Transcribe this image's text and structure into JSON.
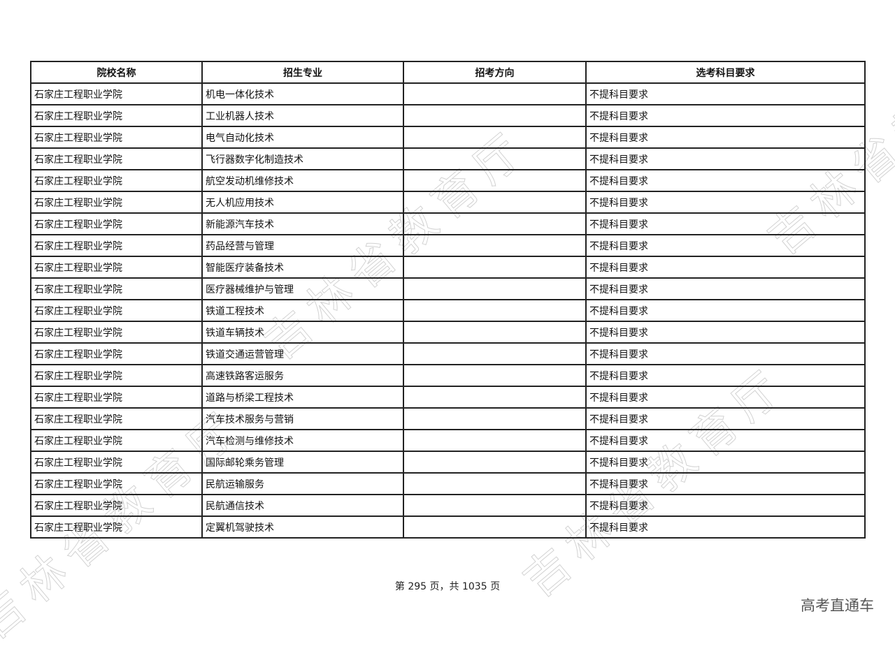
{
  "watermark": "吉林省教育厅",
  "table": {
    "headers": [
      "院校名称",
      "招生专业",
      "招考方向",
      "选考科目要求"
    ],
    "rows": [
      [
        "石家庄工程职业学院",
        "机电一体化技术",
        "",
        "不提科目要求"
      ],
      [
        "石家庄工程职业学院",
        "工业机器人技术",
        "",
        "不提科目要求"
      ],
      [
        "石家庄工程职业学院",
        "电气自动化技术",
        "",
        "不提科目要求"
      ],
      [
        "石家庄工程职业学院",
        "飞行器数字化制造技术",
        "",
        "不提科目要求"
      ],
      [
        "石家庄工程职业学院",
        "航空发动机维修技术",
        "",
        "不提科目要求"
      ],
      [
        "石家庄工程职业学院",
        "无人机应用技术",
        "",
        "不提科目要求"
      ],
      [
        "石家庄工程职业学院",
        "新能源汽车技术",
        "",
        "不提科目要求"
      ],
      [
        "石家庄工程职业学院",
        "药品经营与管理",
        "",
        "不提科目要求"
      ],
      [
        "石家庄工程职业学院",
        "智能医疗装备技术",
        "",
        "不提科目要求"
      ],
      [
        "石家庄工程职业学院",
        "医疗器械维护与管理",
        "",
        "不提科目要求"
      ],
      [
        "石家庄工程职业学院",
        "铁道工程技术",
        "",
        "不提科目要求"
      ],
      [
        "石家庄工程职业学院",
        "铁道车辆技术",
        "",
        "不提科目要求"
      ],
      [
        "石家庄工程职业学院",
        "铁道交通运营管理",
        "",
        "不提科目要求"
      ],
      [
        "石家庄工程职业学院",
        "高速铁路客运服务",
        "",
        "不提科目要求"
      ],
      [
        "石家庄工程职业学院",
        "道路与桥梁工程技术",
        "",
        "不提科目要求"
      ],
      [
        "石家庄工程职业学院",
        "汽车技术服务与营销",
        "",
        "不提科目要求"
      ],
      [
        "石家庄工程职业学院",
        "汽车检测与维修技术",
        "",
        "不提科目要求"
      ],
      [
        "石家庄工程职业学院",
        "国际邮轮乘务管理",
        "",
        "不提科目要求"
      ],
      [
        "石家庄工程职业学院",
        "民航运输服务",
        "",
        "不提科目要求"
      ],
      [
        "石家庄工程职业学院",
        "民航通信技术",
        "",
        "不提科目要求"
      ],
      [
        "石家庄工程职业学院",
        "定翼机驾驶技术",
        "",
        "不提科目要求"
      ]
    ]
  },
  "footer": {
    "page_info": "第 295 页，共 1035 页"
  },
  "brand": "高考直通车"
}
